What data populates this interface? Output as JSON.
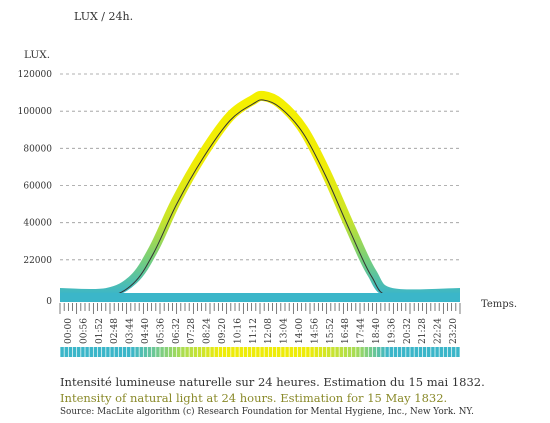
{
  "chart_data": {
    "type": "area",
    "title": "LUX / 24h.",
    "ylabel": "LUX.",
    "xlabel": "Temps.",
    "ylim": [
      0,
      120000
    ],
    "y_ticks": [
      0,
      22000,
      40000,
      60000,
      80000,
      100000,
      120000
    ],
    "y_tick_labels": [
      "0",
      "22000",
      "40000",
      "60000",
      "80000",
      "100000",
      "120000"
    ],
    "x_tick_labels": [
      "00:00",
      "00:56",
      "01:52",
      "02:48",
      "03:44",
      "04:40",
      "05:36",
      "06:32",
      "07:28",
      "08:24",
      "09:20",
      "10:16",
      "11:12",
      "12:08",
      "13:04",
      "14:00",
      "14:56",
      "15:52",
      "16:48",
      "17:44",
      "18:40",
      "19:36",
      "20:32",
      "21:28",
      "22:24",
      "23:20"
    ],
    "grid": true,
    "series": [
      {
        "values_hours": [
          0,
          2.8,
          4.4,
          5.6,
          7.0,
          8.6,
          10.2,
          11.6,
          12.2,
          13.2,
          14.6,
          16.0,
          17.4,
          18.7,
          19.9,
          24
        ],
        "values_lux": [
          0,
          0,
          8000,
          25000,
          50000,
          75000,
          95000,
          104000,
          106000,
          102000,
          88000,
          64000,
          36000,
          12000,
          0,
          0
        ]
      }
    ],
    "colors": {
      "low": "#3bb6c9",
      "high": "#f2ee00",
      "grid": "#999999"
    }
  },
  "captions": {
    "french": "Intensité lumineuse naturelle sur 24 heures. Estimation du 15 mai 1832.",
    "english": "Intensity of natural light at 24 hours. Estimation for 15 May 1832.",
    "source": "Source: MacLite algorithm (c) Research Foundation for Mental Hygiene, Inc., New York. NY."
  }
}
